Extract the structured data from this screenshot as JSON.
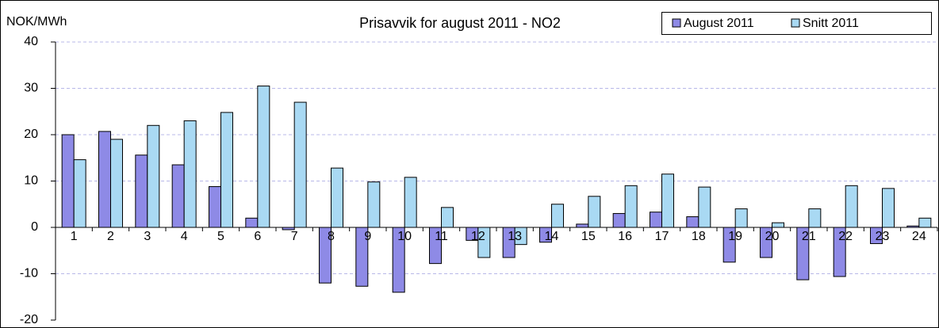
{
  "chart_data": {
    "type": "bar",
    "title": "Prisavvik for august 2011 - NO2",
    "y_label": "NOK/MWh",
    "categories": [
      "1",
      "2",
      "3",
      "4",
      "5",
      "6",
      "7",
      "8",
      "9",
      "10",
      "11",
      "12",
      "13",
      "14",
      "15",
      "16",
      "17",
      "18",
      "19",
      "20",
      "21",
      "22",
      "23",
      "24"
    ],
    "series": [
      {
        "name": "August 2011",
        "color": "#8e8ae6",
        "values": [
          20,
          20.7,
          15.6,
          13.5,
          8.8,
          2,
          -0.5,
          -12,
          -12.7,
          -14,
          -7.8,
          -2.8,
          -6.5,
          -3.2,
          0.7,
          3,
          3.3,
          2.3,
          -7.5,
          -6.5,
          -11.3,
          -10.6,
          -3.5,
          0.3
        ]
      },
      {
        "name": "Snitt 2011",
        "color": "#a9d9f3",
        "values": [
          14.6,
          19,
          22,
          23,
          24.8,
          30.5,
          27,
          12.8,
          9.8,
          10.8,
          4.3,
          -6.5,
          -3.7,
          5,
          6.7,
          9,
          11.5,
          8.7,
          4,
          1,
          4,
          9,
          8.4,
          2
        ]
      }
    ],
    "ylim": [
      -20,
      40
    ],
    "yticks": [
      -20,
      -10,
      0,
      10,
      20,
      30,
      40
    ],
    "grid": true,
    "legend": "top-right"
  }
}
